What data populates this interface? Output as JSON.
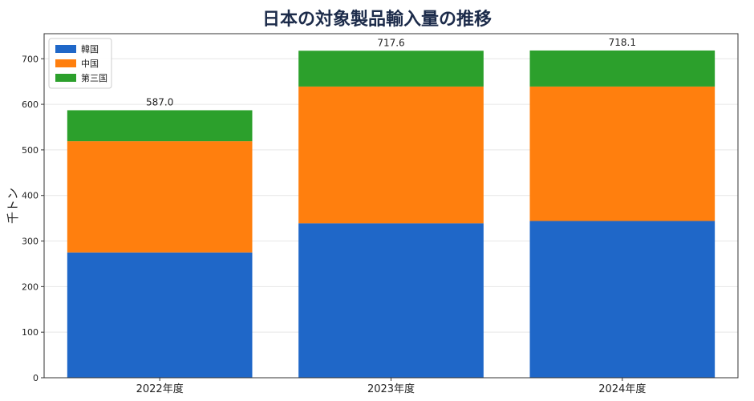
{
  "chart_data": {
    "type": "bar",
    "stacked": true,
    "title": "日本の対象製品輸入量の推移",
    "ylabel": "千トン",
    "xlabel": "",
    "categories": [
      "2022年度",
      "2023年度",
      "2024年度"
    ],
    "series": [
      {
        "name": "韓国",
        "color": "#1f67c8",
        "values": [
          275,
          339,
          344
        ]
      },
      {
        "name": "中国",
        "color": "#ff7f0e",
        "values": [
          244,
          300,
          295
        ]
      },
      {
        "name": "第三国",
        "color": "#2ca02c",
        "values": [
          68,
          78.6,
          79.1
        ]
      }
    ],
    "totals": [
      "587.0",
      "717.6",
      "718.1"
    ],
    "ylim": [
      0,
      755
    ],
    "yticks": [
      0,
      100,
      200,
      300,
      400,
      500,
      600,
      700
    ],
    "grid": true,
    "legend_position": "top-left"
  }
}
